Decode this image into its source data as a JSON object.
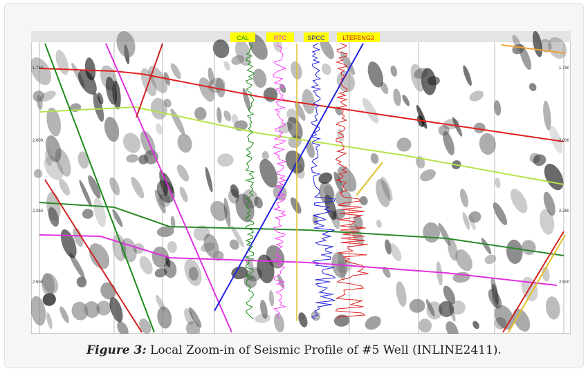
{
  "figure": {
    "label": "Figure 3:",
    "caption": "Local Zoom-in of Seismic Profile of #5 Well (INLINE2411)."
  },
  "image": {
    "track_labels": [
      "CAL",
      "RTC",
      "SPCC",
      "LTEFENG2"
    ],
    "time_labels": [
      "1.750",
      "2.000",
      "2.250",
      "2.500"
    ]
  }
}
